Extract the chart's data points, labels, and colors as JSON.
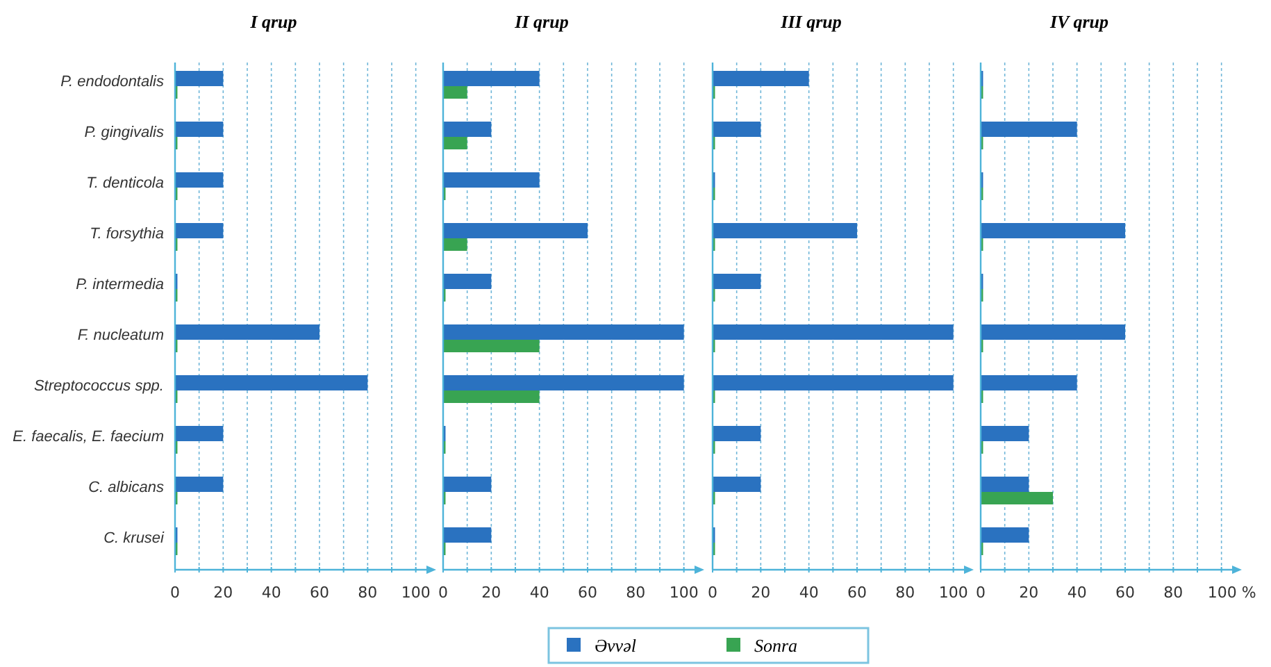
{
  "chart_data": [
    {
      "type": "bar",
      "orientation": "horizontal",
      "title": "I qrup",
      "categories": [
        "P. endodontalis",
        "P. gingivalis",
        "T. denticola",
        "T. forsythia",
        "P. intermedia",
        "F. nucleatum",
        "Streptococcus spp.",
        "E. faecalis, E. faecium",
        "C. albicans",
        "C. krusei"
      ],
      "series": [
        {
          "name": "Əvvəl",
          "color": "#2a72c0",
          "values": [
            20,
            20,
            20,
            20,
            1,
            60,
            80,
            20,
            20,
            1
          ]
        },
        {
          "name": "Sonra",
          "color": "#38a452",
          "values": [
            1,
            1,
            1,
            1,
            1,
            1,
            1,
            1,
            1,
            1
          ]
        }
      ],
      "xlim": [
        0,
        105
      ],
      "xticks": [
        0,
        {
          "value": 10,
          "label": null
        },
        20,
        {
          "value": 30,
          "label": null
        },
        40,
        {
          "value": 50,
          "label": null
        },
        60,
        {
          "value": 70,
          "label": null
        },
        80,
        {
          "value": 90,
          "label": null
        },
        100
      ],
      "grid": "x",
      "legend": "bottom"
    },
    {
      "type": "bar",
      "orientation": "horizontal",
      "title": "II qrup",
      "categories": [
        null,
        null,
        null,
        null,
        null,
        null,
        null,
        null,
        null,
        null
      ],
      "series": [
        {
          "color": "#2a72c0",
          "values": [
            40,
            20,
            40,
            60,
            20,
            100,
            100,
            1,
            20,
            20
          ]
        },
        {
          "color": "#38a452",
          "values": [
            10,
            10,
            1,
            10,
            1,
            40,
            40,
            1,
            1,
            1
          ]
        }
      ],
      "xlim": [
        0,
        105
      ],
      "xticks": [
        0,
        {
          "value": 10,
          "label": null
        },
        20,
        {
          "value": 30,
          "label": null
        },
        40,
        {
          "value": 50,
          "label": null
        },
        60,
        {
          "value": 70,
          "label": null
        },
        80,
        {
          "value": 90,
          "label": null
        },
        100
      ],
      "grid": "x",
      "tick_labels": "x"
    },
    {
      "type": "bar",
      "orientation": "horizontal",
      "title": "III qrup",
      "categories": [
        null,
        null,
        null,
        null,
        null,
        null,
        null,
        null,
        null,
        null
      ],
      "series": [
        {
          "color": "#2a72c0",
          "values": [
            40,
            20,
            1,
            60,
            20,
            100,
            100,
            20,
            20,
            1
          ]
        },
        {
          "color": "#38a452",
          "values": [
            1,
            1,
            1,
            1,
            1,
            1,
            1,
            1,
            1,
            1
          ]
        }
      ],
      "xlim": [
        0,
        105
      ],
      "xticks": [
        0,
        {
          "value": 10,
          "label": null
        },
        20,
        {
          "value": 30,
          "label": null
        },
        40,
        {
          "value": 50,
          "label": null
        },
        60,
        {
          "value": 70,
          "label": null
        },
        80,
        {
          "value": 90,
          "label": null
        },
        100
      ],
      "grid": "x",
      "tick_labels": "x"
    },
    {
      "type": "bar",
      "orientation": "horizontal",
      "title": "IV qrup",
      "categories": [
        null,
        null,
        null,
        null,
        null,
        null,
        null,
        null,
        null,
        null
      ],
      "series": [
        {
          "color": "#2a72c0",
          "values": [
            1,
            40,
            1,
            60,
            1,
            60,
            40,
            20,
            20,
            20
          ]
        },
        {
          "color": "#38a452",
          "values": [
            1,
            1,
            1,
            1,
            1,
            1,
            1,
            1,
            30,
            1
          ]
        }
      ],
      "xlim": [
        0,
        105
      ],
      "xticks": [
        0,
        {
          "value": 10,
          "label": null
        },
        20,
        {
          "value": 30,
          "label": null
        },
        40,
        {
          "value": 50,
          "label": null
        },
        60,
        {
          "value": 70,
          "label": null
        },
        80,
        {
          "value": 90,
          "label": null
        },
        {
          "value": 100,
          "label": "100 %"
        }
      ],
      "grid": "x",
      "tick_labels": "x"
    }
  ]
}
